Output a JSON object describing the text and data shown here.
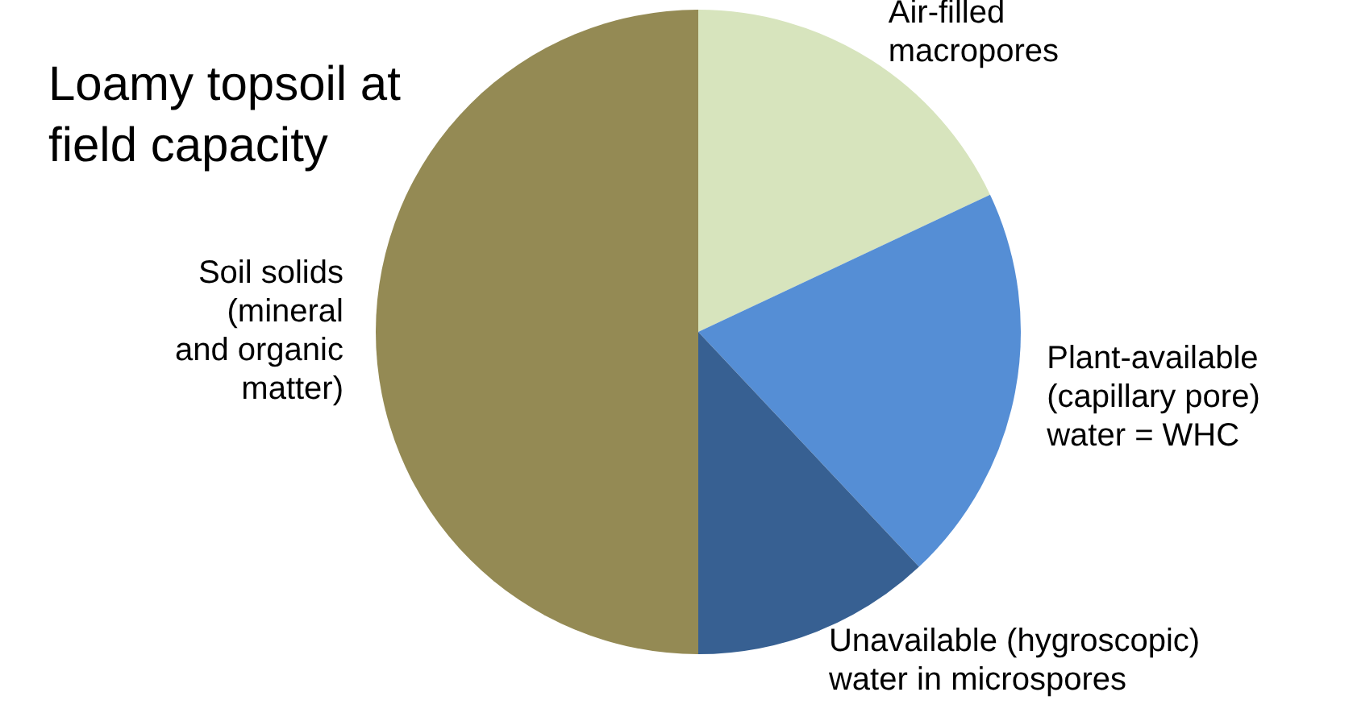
{
  "chart_data": {
    "type": "pie",
    "title": "Loamy topsoil at\nfield capacity",
    "categories": [
      "Air-filled\nmacropores",
      "Plant-available\n(capillary pore)\nwater = WHC",
      "Unavailable (hygroscopic)\nwater in microspores",
      "Soil solids\n(mineral\nand organic\nmatter)"
    ],
    "values": [
      18,
      20,
      12,
      50
    ],
    "colors": [
      "#d7e4bd",
      "#558ed5",
      "#376092",
      "#948a54"
    ],
    "legend": false
  }
}
